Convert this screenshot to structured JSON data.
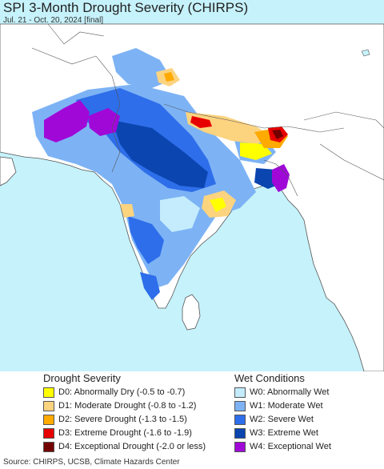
{
  "header": {
    "title": "SPI 3-Month Drought Severity (CHIRPS)",
    "subtitle": "Jul. 21 - Oct. 20, 2024 [final]"
  },
  "colors": {
    "ocean": "#c6f2fb",
    "land_normal": "#ffffff",
    "border": "#555555",
    "D0": "#ffff00",
    "D1": "#fcd37f",
    "D2": "#ffaa00",
    "D3": "#e60000",
    "D4": "#730000",
    "W0": "#c4ecfd",
    "W1": "#7db3f5",
    "W2": "#2e6eea",
    "W3": "#0b45b0",
    "W4": "#a008d8"
  },
  "legend": {
    "drought": {
      "heading": "Drought Severity",
      "items": [
        {
          "code": "D0",
          "label": "D0: Abnormally Dry (-0.5 to -0.7)"
        },
        {
          "code": "D1",
          "label": "D1: Moderate Drought (-0.8 to -1.2)"
        },
        {
          "code": "D2",
          "label": "D2: Severe Drought (-1.3 to -1.5)"
        },
        {
          "code": "D3",
          "label": "D3: Extreme Drought (-1.6 to -1.9)"
        },
        {
          "code": "D4",
          "label": "D4: Exceptional Drought (-2.0 or less)"
        }
      ]
    },
    "wet": {
      "heading": "Wet Conditions",
      "items": [
        {
          "code": "W0",
          "label": "W0: Abnormally Wet"
        },
        {
          "code": "W1",
          "label": "W1: Moderate Wet"
        },
        {
          "code": "W2",
          "label": "W2: Severe Wet"
        },
        {
          "code": "W3",
          "label": "W3: Extreme Wet"
        },
        {
          "code": "W4",
          "label": "W4: Exceptional Wet"
        }
      ]
    }
  },
  "footer": {
    "source": "Source: CHIRPS, UCSB, Climate Hazards Center"
  }
}
